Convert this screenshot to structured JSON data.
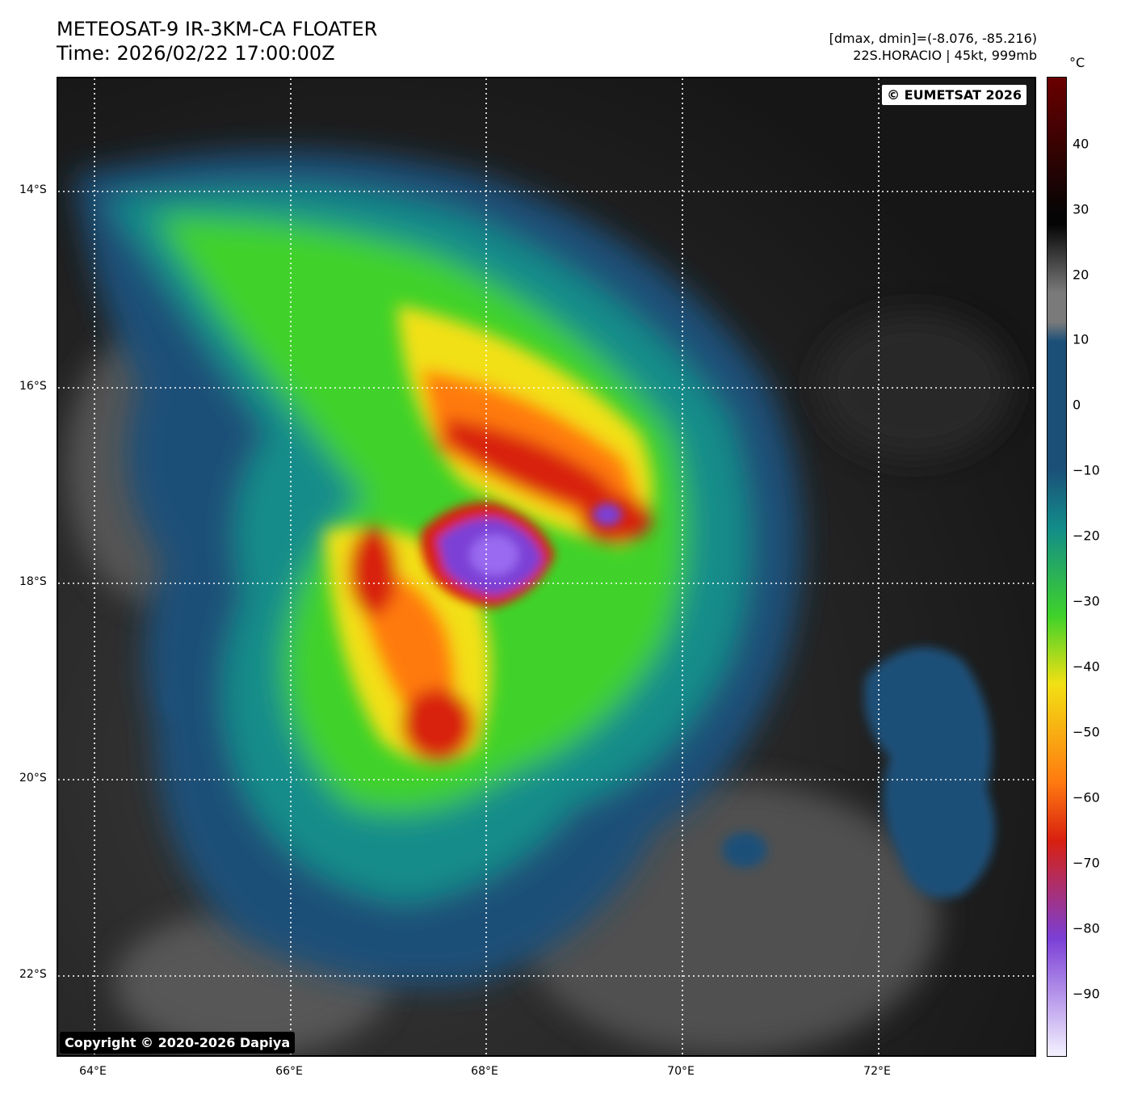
{
  "header": {
    "title": "METEOSAT-9 IR-3KM-CA FLOATER",
    "time": "Time: 2026/02/22 17:00:00Z",
    "range": "[dmax, dmin]=(-8.076, -85.216)",
    "storm": "22S.HORACIO | 45kt, 999mb"
  },
  "map": {
    "copyright_eumetsat": "© EUMETSAT 2026",
    "copyright_dapiya": "Copyright © 2020-2026 Dapiya",
    "lat_ticks": [
      "14°S",
      "16°S",
      "18°S",
      "20°S",
      "22°S"
    ],
    "lon_ticks": [
      "64°E",
      "66°E",
      "68°E",
      "70°E",
      "72°E"
    ],
    "gridlines": "dotted white"
  },
  "colorbar": {
    "unit": "°C",
    "ticks": [
      "40",
      "30",
      "20",
      "10",
      "0",
      "−10",
      "−20",
      "−30",
      "−40",
      "−50",
      "−60",
      "−70",
      "−80",
      "−90"
    ],
    "range": [
      -100,
      50
    ],
    "colors": {
      "very_cold": "#f4f2ff",
      "purple": "#7b3fd6",
      "red": "#d82010",
      "orange": "#ff7a10",
      "yellow": "#f2e014",
      "green": "#3fd22a",
      "teal": "#128c8a",
      "blue": "#1b4f78",
      "gray": "#7a7a7a",
      "black": "#050505",
      "dark_red": "#6a0000"
    }
  }
}
